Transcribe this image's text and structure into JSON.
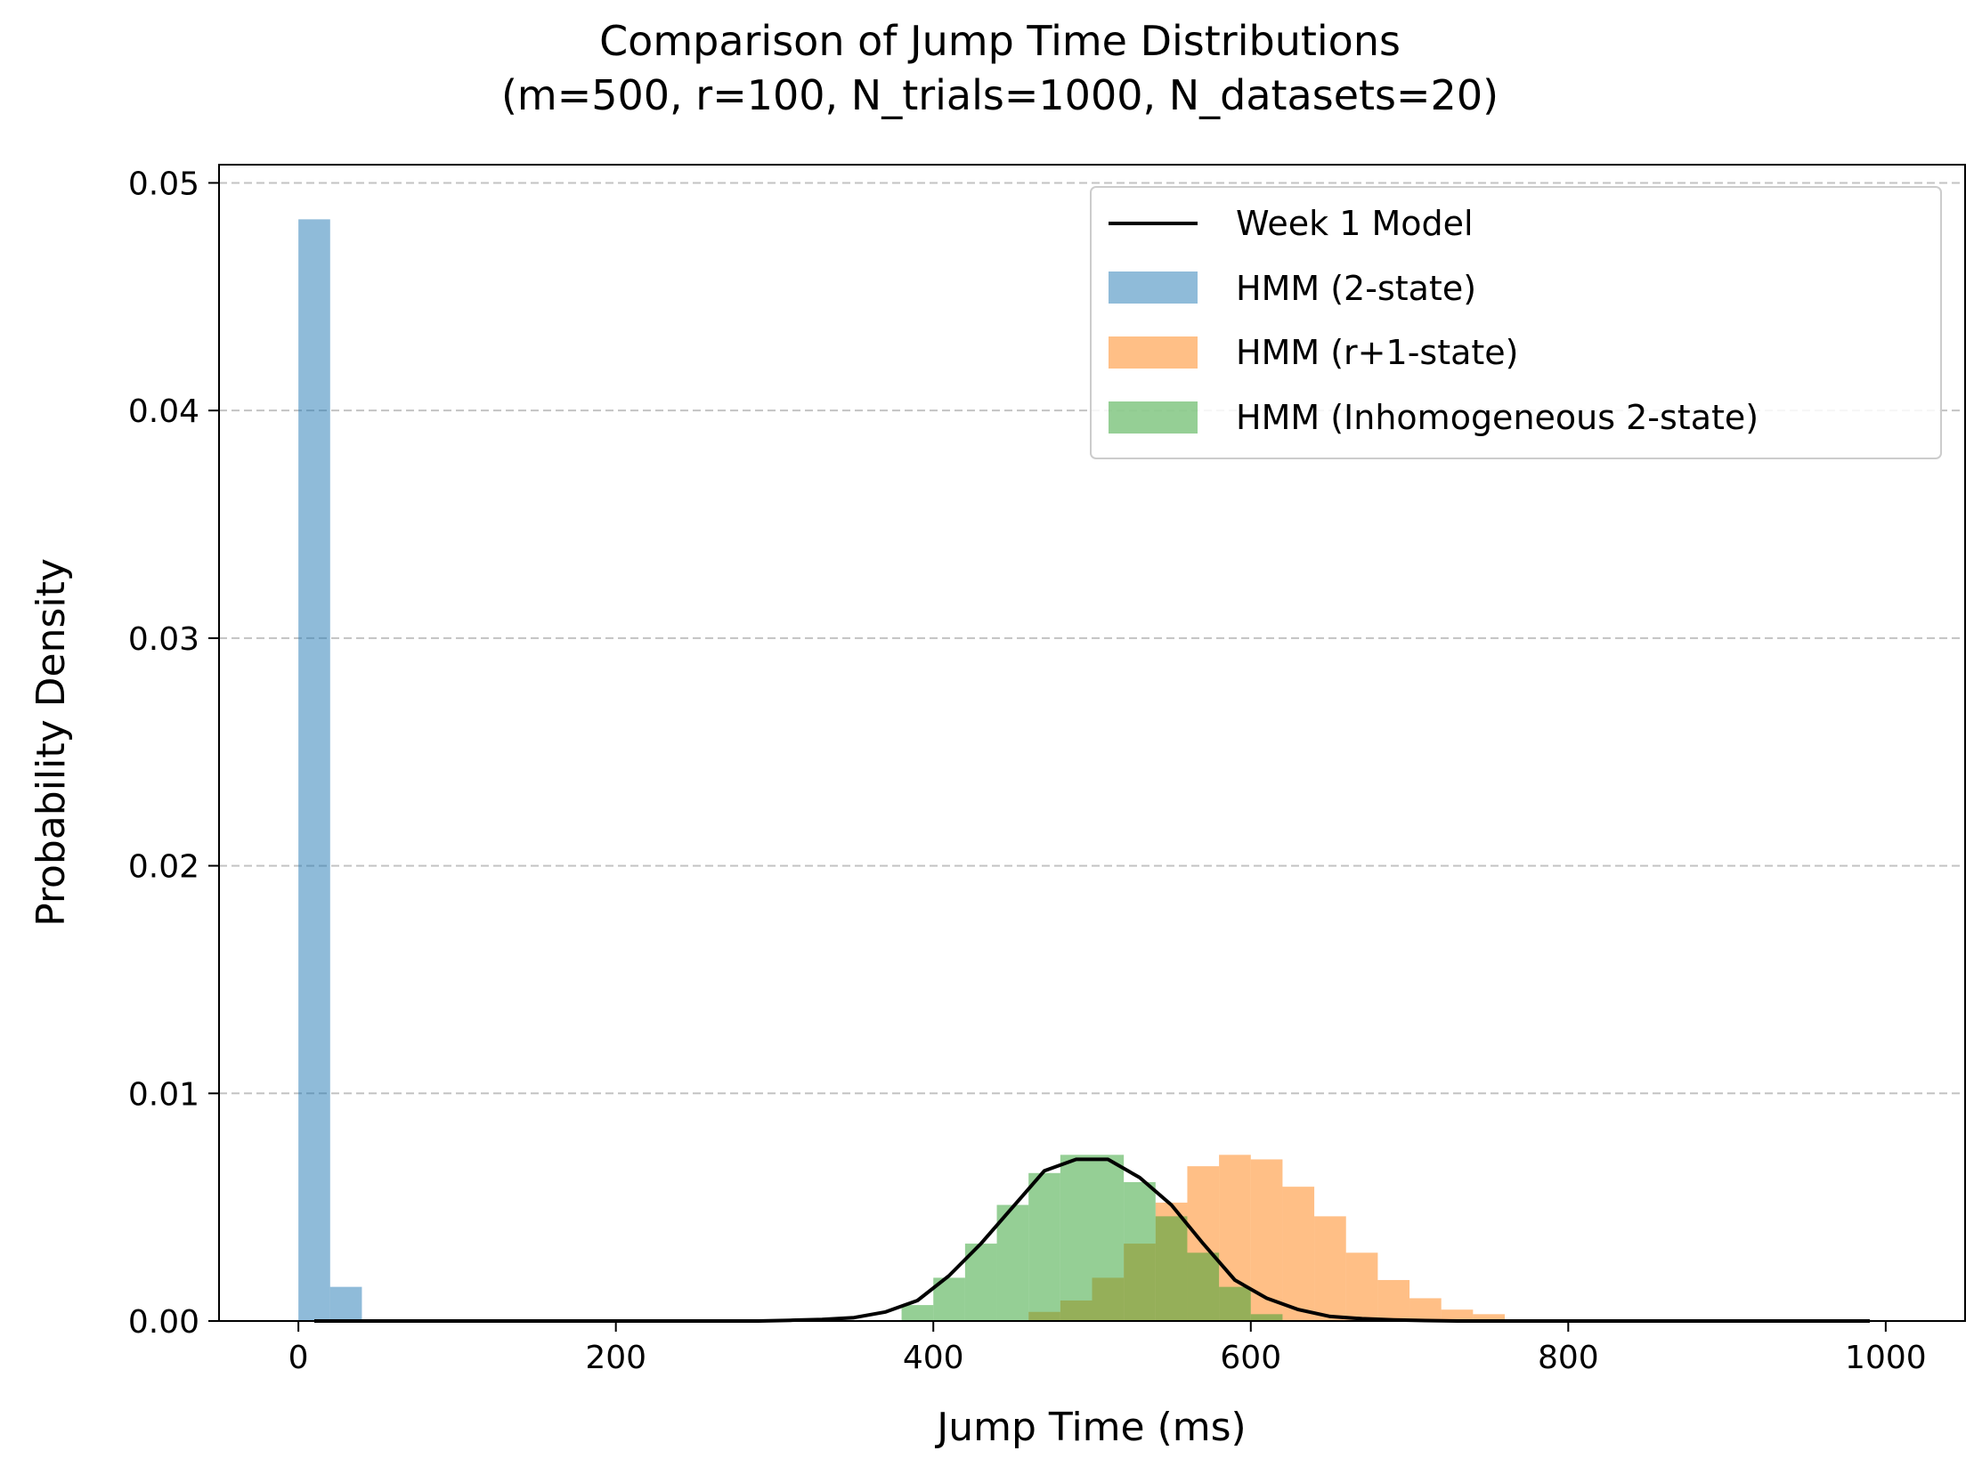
{
  "chart_data": {
    "type": "histogram",
    "title": "Comparison of Jump Time Distributions",
    "subtitle": "(m=500, r=100, N_trials=1000, N_datasets=20)",
    "xlabel": "Jump Time (ms)",
    "ylabel": "Probability Density",
    "xlim": [
      -50,
      1050
    ],
    "ylim": [
      0,
      0.0508
    ],
    "xticks": [
      0,
      200,
      400,
      600,
      800,
      1000
    ],
    "xtick_labels": [
      "0",
      "200",
      "400",
      "600",
      "800",
      "1000"
    ],
    "yticks": [
      0,
      0.01,
      0.02,
      0.03,
      0.04,
      0.05
    ],
    "ytick_labels": [
      "0.00",
      "0.01",
      "0.02",
      "0.03",
      "0.04",
      "0.05"
    ],
    "grid": "horizontal dashed",
    "legend_position": "top-right",
    "series": [
      {
        "name": "Week 1 Model",
        "kind": "line",
        "color": "#000000",
        "x": [
          10,
          30,
          50,
          70,
          90,
          110,
          130,
          150,
          170,
          190,
          210,
          230,
          250,
          270,
          290,
          310,
          330,
          350,
          370,
          390,
          410,
          430,
          450,
          470,
          490,
          510,
          530,
          550,
          570,
          590,
          610,
          630,
          650,
          670,
          690,
          710,
          730,
          750,
          770,
          790,
          810,
          830,
          850,
          870,
          890,
          910,
          930,
          950,
          970,
          990
        ],
        "y": [
          0,
          0,
          0,
          0,
          0,
          0,
          0,
          0,
          0,
          0,
          0,
          0,
          0,
          0,
          0,
          3e-05,
          7e-05,
          0.00015,
          0.0004,
          0.0009,
          0.002,
          0.0034,
          0.005,
          0.0066,
          0.0071,
          0.0071,
          0.0063,
          0.0051,
          0.0034,
          0.0018,
          0.001,
          0.0005,
          0.0002,
          0.0001,
          5e-05,
          2e-05,
          0,
          0,
          0,
          0,
          0,
          0,
          0,
          0,
          0,
          0,
          0,
          0,
          0,
          0
        ]
      },
      {
        "name": "HMM (2-state)",
        "kind": "histogram",
        "color": "#1f77b4",
        "opacity": 0.5,
        "bins": [
          [
            0,
            20,
            0.0484
          ],
          [
            20,
            40,
            0.0015
          ]
        ]
      },
      {
        "name": "HMM (r+1-state)",
        "kind": "histogram",
        "color": "#ff7f0e",
        "opacity": 0.5,
        "bins": [
          [
            460,
            480,
            0.0004
          ],
          [
            480,
            500,
            0.0009
          ],
          [
            500,
            520,
            0.0019
          ],
          [
            520,
            540,
            0.0034
          ],
          [
            540,
            560,
            0.0052
          ],
          [
            560,
            580,
            0.0068
          ],
          [
            580,
            600,
            0.0073
          ],
          [
            600,
            620,
            0.0071
          ],
          [
            620,
            640,
            0.0059
          ],
          [
            640,
            660,
            0.0046
          ],
          [
            660,
            680,
            0.003
          ],
          [
            680,
            700,
            0.0018
          ],
          [
            700,
            720,
            0.001
          ],
          [
            720,
            740,
            0.0005
          ],
          [
            740,
            760,
            0.0003
          ]
        ]
      },
      {
        "name": "HMM (Inhomogeneous 2-state)",
        "kind": "histogram",
        "color": "#2ca02c",
        "opacity": 0.5,
        "bins": [
          [
            380,
            400,
            0.0007
          ],
          [
            400,
            420,
            0.0019
          ],
          [
            420,
            440,
            0.0034
          ],
          [
            440,
            460,
            0.0051
          ],
          [
            460,
            480,
            0.0065
          ],
          [
            480,
            500,
            0.0073
          ],
          [
            500,
            520,
            0.0073
          ],
          [
            520,
            540,
            0.0061
          ],
          [
            540,
            560,
            0.0046
          ],
          [
            560,
            580,
            0.003
          ],
          [
            580,
            600,
            0.0015
          ],
          [
            600,
            620,
            0.0003
          ]
        ]
      }
    ]
  }
}
